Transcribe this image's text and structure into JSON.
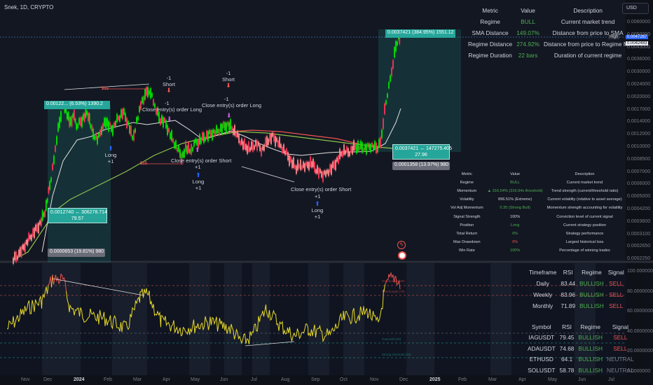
{
  "header": {
    "title": "Snek, 1D, CRYPTO"
  },
  "currency_button": {
    "label": "USD"
  },
  "top_table": {
    "headers": [
      "Metric",
      "Value",
      "Description"
    ],
    "rows": [
      {
        "metric": "Regime",
        "value": "BULL",
        "description": "Current market trend"
      },
      {
        "metric": "SMA Distance",
        "value": "149.07%",
        "description": "Distance from price to SMA"
      },
      {
        "metric": "Regime Distance",
        "value": "274.92%",
        "description": "Distance from price to Regime MA"
      },
      {
        "metric": "Regime Duration",
        "value": "22 bars",
        "description": "Duration of current regime"
      }
    ]
  },
  "mid_table": {
    "headers": [
      "Metric",
      "Value",
      "Description"
    ],
    "rows": [
      {
        "metric": "Regime",
        "value": "BULL",
        "description": "Current market trend"
      },
      {
        "metric": "Momentum",
        "value": "▲ 316.54% (316.94x threshold)",
        "description": "Trend strength (current/threshold ratio)"
      },
      {
        "metric": "Volatility",
        "value": "896.51% (Extreme)",
        "description": "Current volatility (relative to asset average)"
      },
      {
        "metric": "Vol Adj Momentum",
        "value": "0.35 (Strong Bull)",
        "description": "Momentum strength accounting for volatility"
      },
      {
        "metric": "Signal Strength",
        "value": "100%",
        "description": "Conviction level of current signal"
      },
      {
        "metric": "Position",
        "value": "Long",
        "description": "Current strategy position"
      },
      {
        "metric": "Total Return",
        "value": "0%",
        "description": "Strategy performance"
      },
      {
        "metric": "Max Drawdown",
        "value": "0%",
        "description": "Largest historical loss"
      },
      {
        "metric": "Win Rate",
        "value": "100%",
        "description": "Percentage of winning trades"
      }
    ]
  },
  "rsi_table": {
    "headers": [
      "Timeframe",
      "RSI",
      "Regime",
      "Signal"
    ],
    "rows": [
      {
        "tf": "Daily",
        "rsi": "83.44",
        "regime": "BULLISH",
        "signal": "SELL"
      },
      {
        "tf": "Weekly",
        "rsi": "83.96",
        "regime": "BULLISH",
        "signal": "SELL"
      },
      {
        "tf": "Monthly",
        "rsi": "71.89",
        "regime": "BULLISH",
        "signal": "SELL"
      }
    ]
  },
  "symbol_table": {
    "headers": [
      "Symbol",
      "RSI",
      "Regime",
      "Signal"
    ],
    "rows": [
      {
        "sym": "IAGUSDT",
        "rsi": "79.45",
        "regime": "BULLISH",
        "signal": "SELL"
      },
      {
        "sym": "ADAUSDT",
        "rsi": "74.68",
        "regime": "BULLISH",
        "signal": "SELL"
      },
      {
        "sym": "ETHUSD",
        "rsi": "64.1",
        "regime": "BULLISH",
        "signal": "NEUTRAL"
      },
      {
        "sym": "SOLUSDT",
        "rsi": "58.78",
        "regime": "BULLISH",
        "signal": "NEUTRAL"
      }
    ]
  },
  "price_axis": [
    "0.0060000",
    "0.0050000",
    "0.0043000",
    "0.0036000",
    "0.0030000",
    "0.0024000",
    "0.0020000",
    "0.0017000",
    "0.0014000",
    "0.0012000",
    "0.0010000",
    "0.0008500",
    "0.0007000",
    "0.0006000",
    "0.0005000",
    "0.0004200",
    "0.0003600",
    "0.0003100",
    "0.0002650",
    "0.0002250"
  ],
  "price_tags": {
    "high_label": "High",
    "high": "0.0047267",
    "last": "0.0042483"
  },
  "rsi_axis": [
    "100.0000000",
    "80.0000000",
    "60.0000000",
    "40.0000000",
    "20.0000000",
    "0.0000000"
  ],
  "time_axis": [
    "Nov",
    "Dec",
    "2024",
    "Feb",
    "Mar",
    "Apr",
    "May",
    "Jun",
    "Jul",
    "Aug",
    "Sep",
    "Oct",
    "Nov",
    "Dec",
    "2025",
    "Feb",
    "Mar",
    "Apr",
    "May",
    "Jun",
    "Jul"
  ],
  "annotations": {
    "long": "Long",
    "plus1": "+1",
    "minus1": "-1",
    "short": "Short",
    "close_long": "Close entry(s) order Long",
    "close_short": "Close entry(s) order Short",
    "dollars": "$$$"
  },
  "boxes": {
    "b1": "0.00122... (6.53%) 1390.2",
    "b2a": "0.0012740 ↔ 306278.714",
    "b2b": "79.57",
    "b3": "0.0000653 (19.81%) 980",
    "b4": "0.0037421 (384.95%) 1551.12",
    "b5a": "0.0037421 ↔ 147275.405",
    "b5b": "27.96",
    "b6": "0.0001358 (13.97%) 980"
  },
  "rsi_labels": {
    "ob": "Overbought (80)",
    "ob2": "Overbought (70)",
    "os": "Oversold (30)",
    "os2": "Strong Oversold (20)"
  },
  "colors": {
    "bull": "#26a69a",
    "bear": "#ef5350",
    "green_text": "#4caf50",
    "candle_up": "#00e600",
    "candle_dn": "#ff3355",
    "rsi": "#e8d92a"
  }
}
